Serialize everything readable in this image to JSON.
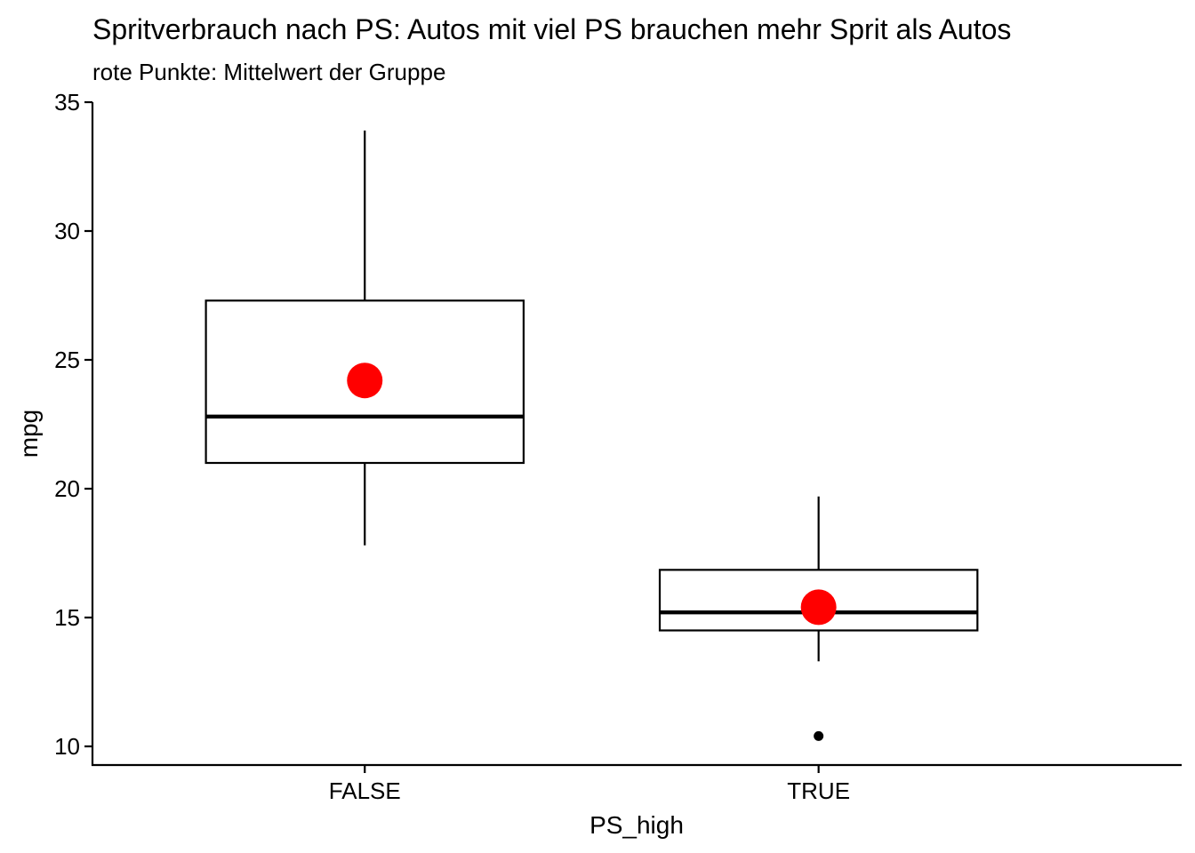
{
  "chart_data": {
    "type": "boxplot",
    "title": "Spritverbrauch nach PS: Autos mit viel PS brauchen mehr Sprit als Autos",
    "subtitle": "rote Punkte: Mittelwert der Gruppe",
    "xlabel": "PS_high",
    "ylabel": "mpg",
    "ylim": [
      9.3,
      35
    ],
    "yticks": [
      10,
      15,
      20,
      25,
      30,
      35
    ],
    "grid": false,
    "legend": "none",
    "mean_color": "#ff0000",
    "categories": [
      "FALSE",
      "TRUE"
    ],
    "boxes": [
      {
        "category": "FALSE",
        "whisker_low": 17.8,
        "q1": 21.0,
        "median": 22.8,
        "q3": 27.3,
        "whisker_high": 33.9,
        "mean": 24.2,
        "outliers": []
      },
      {
        "category": "TRUE",
        "whisker_low": 13.3,
        "q1": 14.5,
        "median": 15.2,
        "q3": 16.85,
        "whisker_high": 19.7,
        "mean": 15.4,
        "outliers": [
          10.4
        ]
      }
    ]
  }
}
